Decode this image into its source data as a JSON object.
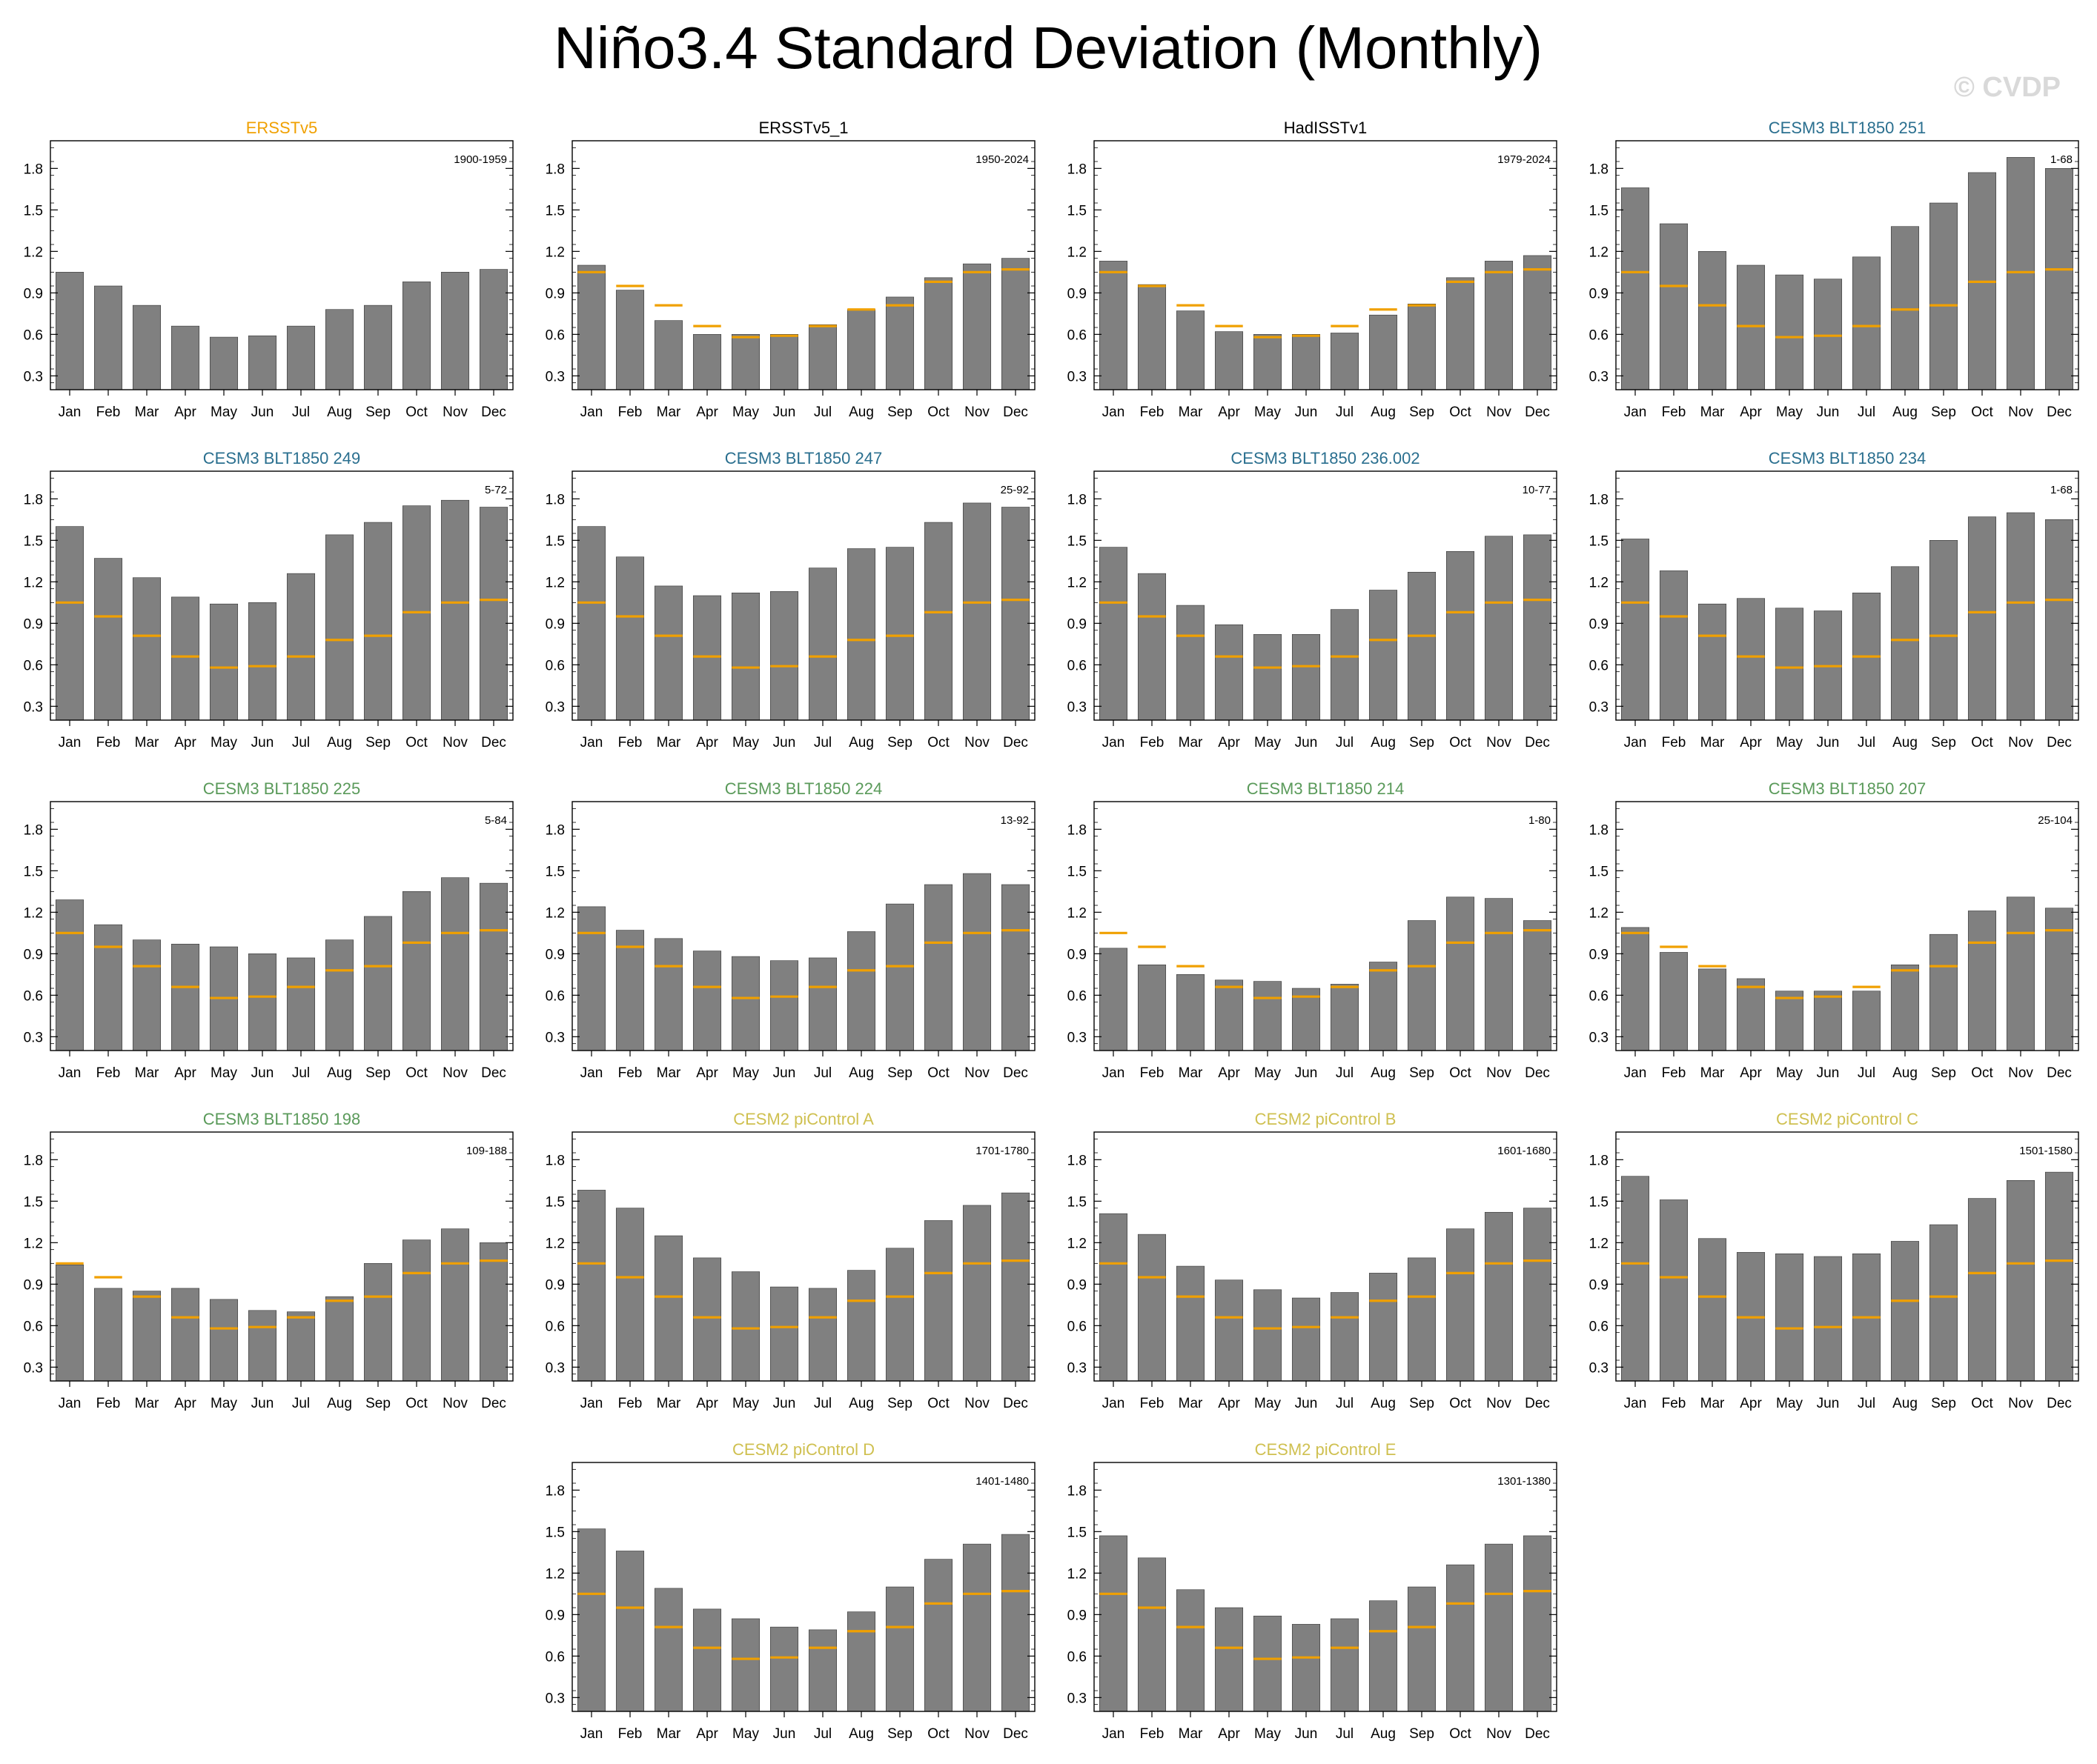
{
  "figure": {
    "title": "Niño3.4 Standard Deviation (Monthly)",
    "copyright": "© CVDP"
  },
  "colors": {
    "bar": "#808080",
    "bar_edge": "#333333",
    "obs_line": "#f0a000",
    "obs_title": "#f0a000",
    "default_title": "#000000",
    "cesm3_blue": "#2a6f8f",
    "cesm3_green": "#5a9a5a",
    "cesm2_yellow": "#cfc050",
    "axis": "#000000",
    "copyright": "#d9d9d9"
  },
  "chart_data": {
    "type": "bar",
    "layout": "grid of 18 panels, 4 columns by 5 rows, last row centered",
    "categories": [
      "Jan",
      "Feb",
      "Mar",
      "Apr",
      "May",
      "Jun",
      "Jul",
      "Aug",
      "Sep",
      "Oct",
      "Nov",
      "Dec"
    ],
    "ylim": [
      0.2,
      2.0
    ],
    "yticks": [
      "0.3",
      "0.6",
      "0.9",
      "1.2",
      "1.5",
      "1.8"
    ],
    "ytick_values": [
      0.3,
      0.6,
      0.9,
      1.2,
      1.5,
      1.8
    ],
    "overlay_line": {
      "name": "ERSSTv5 (1900-1959) reference",
      "values": [
        1.05,
        0.95,
        0.81,
        0.66,
        0.58,
        0.59,
        0.66,
        0.78,
        0.81,
        0.98,
        1.05,
        1.07
      ]
    },
    "panels": [
      {
        "title": "ERSSTv5",
        "title_color": "obs_title",
        "period": "1900-1959",
        "show_overlay": false,
        "values": [
          1.05,
          0.95,
          0.81,
          0.66,
          0.58,
          0.59,
          0.66,
          0.78,
          0.81,
          0.98,
          1.05,
          1.07
        ]
      },
      {
        "title": "ERSSTv5_1",
        "title_color": "default_title",
        "period": "1950-2024",
        "show_overlay": true,
        "values": [
          1.1,
          0.92,
          0.7,
          0.6,
          0.6,
          0.6,
          0.67,
          0.78,
          0.87,
          1.01,
          1.11,
          1.15
        ]
      },
      {
        "title": "HadISSTv1",
        "title_color": "default_title",
        "period": "1979-2024",
        "show_overlay": true,
        "values": [
          1.13,
          0.96,
          0.77,
          0.62,
          0.6,
          0.6,
          0.61,
          0.74,
          0.82,
          1.01,
          1.13,
          1.17
        ]
      },
      {
        "title": "CESM3 BLT1850 251",
        "title_color": "cesm3_blue",
        "period": "1-68",
        "show_overlay": true,
        "values": [
          1.66,
          1.4,
          1.2,
          1.1,
          1.03,
          1.0,
          1.16,
          1.38,
          1.55,
          1.77,
          1.88,
          1.8
        ]
      },
      {
        "title": "CESM3 BLT1850 249",
        "title_color": "cesm3_blue",
        "period": "5-72",
        "show_overlay": true,
        "values": [
          1.6,
          1.37,
          1.23,
          1.09,
          1.04,
          1.05,
          1.26,
          1.54,
          1.63,
          1.75,
          1.79,
          1.74
        ]
      },
      {
        "title": "CESM3 BLT1850 247",
        "title_color": "cesm3_blue",
        "period": "25-92",
        "show_overlay": true,
        "values": [
          1.6,
          1.38,
          1.17,
          1.1,
          1.12,
          1.13,
          1.3,
          1.44,
          1.45,
          1.63,
          1.77,
          1.74
        ]
      },
      {
        "title": "CESM3 BLT1850 236.002",
        "title_color": "cesm3_blue",
        "period": "10-77",
        "show_overlay": true,
        "values": [
          1.45,
          1.26,
          1.03,
          0.89,
          0.82,
          0.82,
          1.0,
          1.14,
          1.27,
          1.42,
          1.53,
          1.54
        ]
      },
      {
        "title": "CESM3 BLT1850 234",
        "title_color": "cesm3_blue",
        "period": "1-68",
        "show_overlay": true,
        "values": [
          1.51,
          1.28,
          1.04,
          1.08,
          1.01,
          0.99,
          1.12,
          1.31,
          1.5,
          1.67,
          1.7,
          1.65
        ]
      },
      {
        "title": "CESM3 BLT1850 225",
        "title_color": "cesm3_green",
        "period": "5-84",
        "show_overlay": true,
        "values": [
          1.29,
          1.11,
          1.0,
          0.97,
          0.95,
          0.9,
          0.87,
          1.0,
          1.17,
          1.35,
          1.45,
          1.41
        ]
      },
      {
        "title": "CESM3 BLT1850 224",
        "title_color": "cesm3_green",
        "period": "13-92",
        "show_overlay": true,
        "values": [
          1.24,
          1.07,
          1.01,
          0.92,
          0.88,
          0.85,
          0.87,
          1.06,
          1.26,
          1.4,
          1.48,
          1.4
        ]
      },
      {
        "title": "CESM3 BLT1850 214",
        "title_color": "cesm3_green",
        "period": "1-80",
        "show_overlay": true,
        "values": [
          0.94,
          0.82,
          0.75,
          0.71,
          0.7,
          0.65,
          0.68,
          0.84,
          1.14,
          1.31,
          1.3,
          1.14
        ]
      },
      {
        "title": "CESM3 BLT1850 207",
        "title_color": "cesm3_green",
        "period": "25-104",
        "show_overlay": true,
        "values": [
          1.09,
          0.91,
          0.79,
          0.72,
          0.63,
          0.63,
          0.63,
          0.82,
          1.04,
          1.21,
          1.31,
          1.23
        ]
      },
      {
        "title": "CESM3 BLT1850 198",
        "title_color": "cesm3_green",
        "period": "109-188",
        "show_overlay": true,
        "values": [
          1.04,
          0.87,
          0.85,
          0.87,
          0.79,
          0.71,
          0.7,
          0.81,
          1.05,
          1.22,
          1.3,
          1.2
        ]
      },
      {
        "title": "CESM2 piControl A",
        "title_color": "cesm2_yellow",
        "period": "1701-1780",
        "show_overlay": true,
        "values": [
          1.58,
          1.45,
          1.25,
          1.09,
          0.99,
          0.88,
          0.87,
          1.0,
          1.16,
          1.36,
          1.47,
          1.56
        ]
      },
      {
        "title": "CESM2 piControl B",
        "title_color": "cesm2_yellow",
        "period": "1601-1680",
        "show_overlay": true,
        "values": [
          1.41,
          1.26,
          1.03,
          0.93,
          0.86,
          0.8,
          0.84,
          0.98,
          1.09,
          1.3,
          1.42,
          1.45
        ]
      },
      {
        "title": "CESM2 piControl C",
        "title_color": "cesm2_yellow",
        "period": "1501-1580",
        "show_overlay": true,
        "values": [
          1.68,
          1.51,
          1.23,
          1.13,
          1.12,
          1.1,
          1.12,
          1.21,
          1.33,
          1.52,
          1.65,
          1.71
        ]
      },
      {
        "title": "CESM2 piControl D",
        "title_color": "cesm2_yellow",
        "period": "1401-1480",
        "show_overlay": true,
        "values": [
          1.52,
          1.36,
          1.09,
          0.94,
          0.87,
          0.81,
          0.79,
          0.92,
          1.1,
          1.3,
          1.41,
          1.48
        ]
      },
      {
        "title": "CESM2 piControl E",
        "title_color": "cesm2_yellow",
        "period": "1301-1380",
        "show_overlay": true,
        "values": [
          1.47,
          1.31,
          1.08,
          0.95,
          0.89,
          0.83,
          0.87,
          1.0,
          1.1,
          1.26,
          1.41,
          1.47
        ]
      }
    ]
  }
}
